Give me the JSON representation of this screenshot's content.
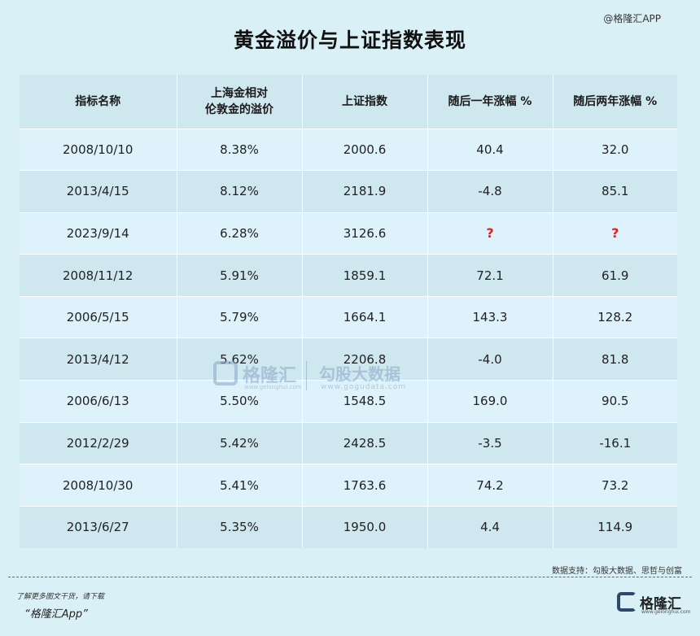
{
  "watermark_top": "@格隆汇APP",
  "title": "黄金溢价与上证指数表现",
  "table": {
    "headers": [
      {
        "line1": "指标名称",
        "line2": ""
      },
      {
        "line1": "上海金相对",
        "line2": "伦敦金的溢价"
      },
      {
        "line1": "上证指数",
        "line2": ""
      },
      {
        "line1": "随后一年涨幅 %",
        "line2": ""
      },
      {
        "line1": "随后两年涨幅 %",
        "line2": ""
      }
    ],
    "rows": [
      [
        "2008/10/10",
        "8.38%",
        "2000.6",
        "40.4",
        "32.0"
      ],
      [
        "2013/4/15",
        "8.12%",
        "2181.9",
        "-4.8",
        "85.1"
      ],
      [
        "2023/9/14",
        "6.28%",
        "3126.6",
        "?",
        "?"
      ],
      [
        "2008/11/12",
        "5.91%",
        "1859.1",
        "72.1",
        "61.9"
      ],
      [
        "2006/5/15",
        "5.79%",
        "1664.1",
        "143.3",
        "128.2"
      ],
      [
        "2013/4/12",
        "5.62%",
        "2206.8",
        "-4.0",
        "81.8"
      ],
      [
        "2006/6/13",
        "5.50%",
        "1548.5",
        "169.0",
        "90.5"
      ],
      [
        "2012/2/29",
        "5.42%",
        "2428.5",
        "-3.5",
        "-16.1"
      ],
      [
        "2008/10/30",
        "5.41%",
        "1763.6",
        "74.2",
        "73.2"
      ],
      [
        "2013/6/27",
        "5.35%",
        "1950.0",
        "4.4",
        "114.9"
      ]
    ]
  },
  "center_watermark": {
    "name": "格隆汇",
    "sub": "www.gelonghui.com",
    "name2": "勾股大数据",
    "sub2": "www.gogudata.com"
  },
  "source": "数据支持：勾股大数据、思哲与创富",
  "footer": {
    "line1": "了解更多图文干货，请下载",
    "line2": "“格隆汇App”"
  },
  "brand": {
    "name": "格隆汇",
    "sub": "www.gelonghui.com"
  },
  "colors": {
    "background": "#daf0f7",
    "header_row": "#cfe7ef",
    "row_light": "#ddf2fa",
    "row_dark": "#cfe7ef",
    "question_mark": "#e02020"
  }
}
